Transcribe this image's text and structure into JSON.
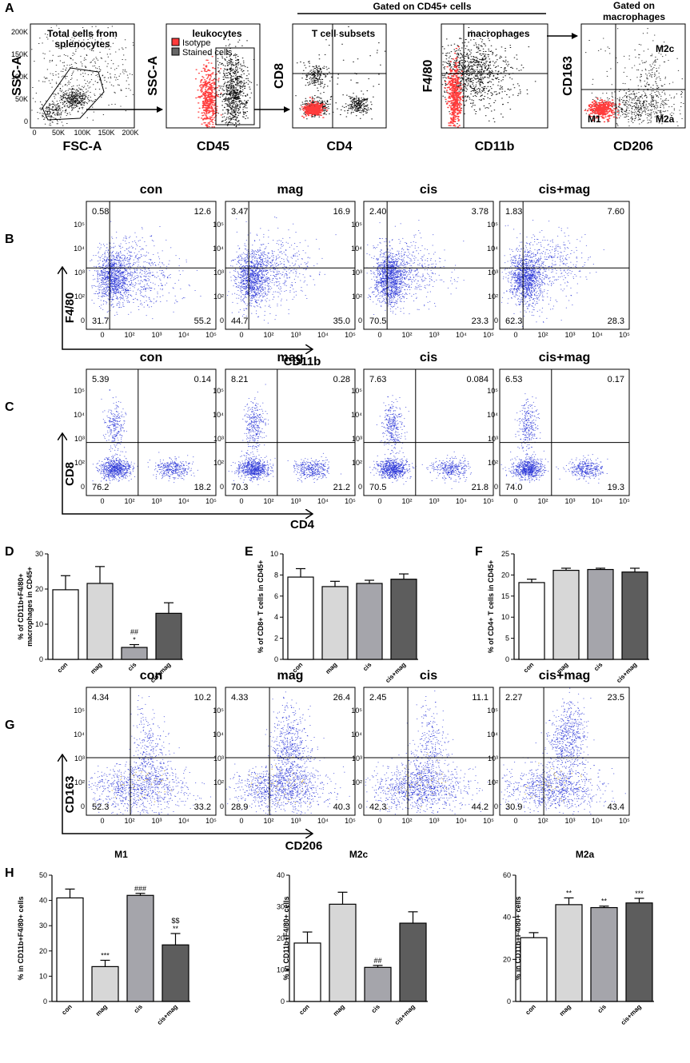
{
  "panelA": {
    "letter": "A",
    "gated_header": "Gated on CD45+ cells",
    "gated_macro_header": [
      "Gated on",
      "macrophages"
    ],
    "plots": [
      {
        "title": [
          "Total cells from",
          "splenocytes"
        ],
        "xlabel": "FSC-A",
        "ylabel": "SSC-A",
        "xticks": [
          "0",
          "50K",
          "100K",
          "150K",
          "200K"
        ],
        "yticks": [
          "0",
          "50K",
          "100K",
          "150K",
          "200K"
        ]
      },
      {
        "title": [
          "leukocytes"
        ],
        "xlabel": "CD45",
        "ylabel": "SSC-A",
        "legend": [
          "Isotype",
          "Stained cells"
        ]
      },
      {
        "title": [
          "T cell subsets"
        ],
        "xlabel": "CD4",
        "ylabel": "CD8"
      },
      {
        "title": [
          "macrophages"
        ],
        "xlabel": "CD11b",
        "ylabel": "F4/80"
      },
      {
        "title": [],
        "xlabel": "CD206",
        "ylabel": "CD163",
        "quadrant_labels": [
          "M2c",
          "M1",
          "M2a"
        ]
      }
    ]
  },
  "groups": [
    "con",
    "mag",
    "cis",
    "cis+mag"
  ],
  "decades": [
    "0",
    "10²",
    "10³",
    "10⁴",
    "10⁵"
  ],
  "panelB": {
    "letter": "B",
    "xlabel": "CD11b",
    "ylabel": "F4/80",
    "quadrants": [
      [
        "0.58",
        "12.6",
        "31.7",
        "55.2"
      ],
      [
        "3.47",
        "16.9",
        "44.7",
        "35.0"
      ],
      [
        "2.40",
        "3.78",
        "70.5",
        "23.3"
      ],
      [
        "1.83",
        "7.60",
        "62.3",
        "28.3"
      ]
    ]
  },
  "panelC": {
    "letter": "C",
    "xlabel": "CD4",
    "ylabel": "CD8",
    "quadrants": [
      [
        "5.39",
        "0.14",
        "76.2",
        "18.2"
      ],
      [
        "8.21",
        "0.28",
        "70.3",
        "21.2"
      ],
      [
        "7.63",
        "0.084",
        "70.5",
        "21.8"
      ],
      [
        "6.53",
        "0.17",
        "74.0",
        "19.3"
      ]
    ]
  },
  "panelG": {
    "letter": "G",
    "xlabel": "CD206",
    "ylabel": "CD163",
    "quadrants": [
      [
        "4.34",
        "10.2",
        "52.3",
        "33.2"
      ],
      [
        "4.33",
        "26.4",
        "28.9",
        "40.3"
      ],
      [
        "2.45",
        "11.1",
        "42.3",
        "44.2"
      ],
      [
        "2.27",
        "23.5",
        "30.9",
        "43.4"
      ]
    ]
  },
  "colors": {
    "isotype": "#ff3b3b",
    "stained": "#111111",
    "dots": "#2f3ad8",
    "bar_fills": [
      "#ffffff",
      "#d7d7d7",
      "#a5a5ab",
      "#5d5d5d"
    ]
  },
  "chart_data": [
    {
      "type": "bar",
      "panel": "D",
      "title": "",
      "ylabel": "% of CD11b+F4/80+ macrophages in CD45+",
      "categories": [
        "con",
        "mag",
        "cis",
        "cis+mag"
      ],
      "values": [
        19.8,
        21.6,
        3.4,
        13.1
      ],
      "errors": [
        4.0,
        4.8,
        0.8,
        3.0
      ],
      "ylim": [
        0,
        30
      ],
      "yticks": [
        "0",
        "10",
        "20",
        "30"
      ],
      "annotations": [
        {
          "category": "cis",
          "lines": [
            "##",
            "*"
          ]
        }
      ]
    },
    {
      "type": "bar",
      "panel": "E",
      "title": "",
      "ylabel": "% of CD8+ T cells in CD45+",
      "categories": [
        "con",
        "mag",
        "cis",
        "cis+mag"
      ],
      "values": [
        7.8,
        6.9,
        7.2,
        7.6
      ],
      "errors": [
        0.8,
        0.5,
        0.3,
        0.5
      ],
      "ylim": [
        0,
        10
      ],
      "yticks": [
        "0",
        "2",
        "4",
        "6",
        "8",
        "10"
      ],
      "annotations": []
    },
    {
      "type": "bar",
      "panel": "F",
      "title": "",
      "ylabel": "% of CD4+ T cells in CD45+",
      "categories": [
        "con",
        "mag",
        "cis",
        "cis+mag"
      ],
      "values": [
        18.2,
        21.1,
        21.3,
        20.7
      ],
      "errors": [
        0.8,
        0.5,
        0.3,
        0.9
      ],
      "ylim": [
        0,
        25
      ],
      "yticks": [
        "0",
        "5",
        "10",
        "15",
        "20",
        "25"
      ],
      "annotations": []
    },
    {
      "type": "bar",
      "panel": "H",
      "title": "M1",
      "ylabel": "% in CD11b+F4/80+ cells",
      "categories": [
        "con",
        "mag",
        "cis",
        "cis+mag"
      ],
      "values": [
        41.0,
        13.8,
        42.0,
        22.4
      ],
      "errors": [
        3.5,
        2.5,
        0.8,
        4.5
      ],
      "ylim": [
        0,
        50
      ],
      "yticks": [
        "0",
        "10",
        "20",
        "30",
        "40",
        "50"
      ],
      "annotations": [
        {
          "category": "mag",
          "lines": [
            "***"
          ]
        },
        {
          "category": "cis",
          "lines": [
            "###"
          ]
        },
        {
          "category": "cis+mag",
          "lines": [
            "$$",
            "**"
          ]
        }
      ]
    },
    {
      "type": "bar",
      "panel": "",
      "title": "M2c",
      "ylabel": "% in CD11b+F4/80+ cells",
      "categories": [
        "con",
        "mag",
        "cis",
        "cis+mag"
      ],
      "values": [
        18.5,
        30.8,
        10.8,
        24.8
      ],
      "errors": [
        3.5,
        3.8,
        0.6,
        3.6
      ],
      "ylim": [
        0,
        40
      ],
      "yticks": [
        "0",
        "10",
        "20",
        "30",
        "40"
      ],
      "annotations": [
        {
          "category": "cis",
          "lines": [
            "##"
          ]
        }
      ]
    },
    {
      "type": "bar",
      "panel": "",
      "title": "M2a",
      "ylabel": "% in CD11b+F4/80+ cells",
      "categories": [
        "con",
        "mag",
        "cis",
        "cis+mag"
      ],
      "values": [
        30.3,
        46.0,
        44.6,
        46.8
      ],
      "errors": [
        2.4,
        3.2,
        0.7,
        2.2
      ],
      "ylim": [
        0,
        60
      ],
      "yticks": [
        "0",
        "20",
        "40",
        "60"
      ],
      "annotations": [
        {
          "category": "mag",
          "lines": [
            "**"
          ]
        },
        {
          "category": "cis",
          "lines": [
            "**"
          ]
        },
        {
          "category": "cis+mag",
          "lines": [
            "***"
          ]
        }
      ]
    }
  ]
}
